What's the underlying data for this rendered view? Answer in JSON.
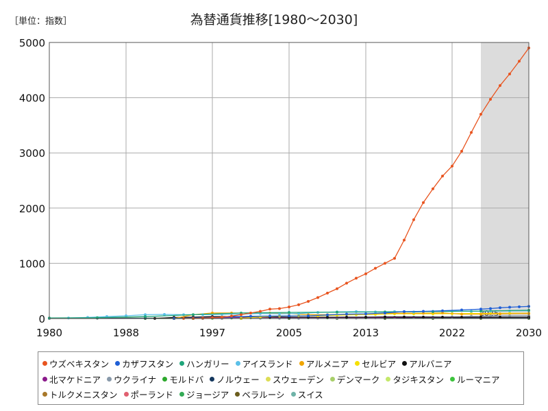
{
  "unit_label": "［単位：指数］",
  "chart_data": {
    "type": "line",
    "title": "為替通貨推移[1980～2030]",
    "xlabel": "",
    "ylabel": "",
    "xlim": [
      1980,
      2030
    ],
    "ylim": [
      0,
      5000
    ],
    "x_ticks": [
      1980,
      1988,
      1997,
      2005,
      2013,
      2022,
      2030
    ],
    "y_ticks": [
      0,
      1000,
      2000,
      3000,
      4000,
      5000
    ],
    "forecast_start": 2025,
    "forecast_label": "2025",
    "grid": true,
    "legend_position": "bottom",
    "series": [
      {
        "name": "ウズベキスタン",
        "color": "#e8541f",
        "points": [
          [
            1994,
            1
          ],
          [
            1995,
            3
          ],
          [
            1996,
            8
          ],
          [
            1997,
            15
          ],
          [
            1998,
            25
          ],
          [
            1999,
            45
          ],
          [
            2000,
            70
          ],
          [
            2001,
            100
          ],
          [
            2002,
            130
          ],
          [
            2003,
            170
          ],
          [
            2004,
            180
          ],
          [
            2005,
            210
          ],
          [
            2006,
            250
          ],
          [
            2007,
            310
          ],
          [
            2008,
            380
          ],
          [
            2009,
            460
          ],
          [
            2010,
            540
          ],
          [
            2011,
            640
          ],
          [
            2012,
            730
          ],
          [
            2013,
            810
          ],
          [
            2014,
            910
          ],
          [
            2015,
            1000
          ],
          [
            2016,
            1090
          ],
          [
            2017,
            1420
          ],
          [
            2018,
            1790
          ],
          [
            2019,
            2100
          ],
          [
            2020,
            2350
          ],
          [
            2021,
            2580
          ],
          [
            2022,
            2760
          ],
          [
            2023,
            3030
          ],
          [
            2024,
            3370
          ],
          [
            2025,
            3700
          ],
          [
            2026,
            3970
          ],
          [
            2027,
            4220
          ],
          [
            2028,
            4430
          ],
          [
            2029,
            4660
          ],
          [
            2030,
            4900
          ]
        ]
      },
      {
        "name": "カザフスタン",
        "color": "#1f5fd6",
        "points": [
          [
            1993,
            1
          ],
          [
            1995,
            10
          ],
          [
            1997,
            20
          ],
          [
            1999,
            30
          ],
          [
            2001,
            40
          ],
          [
            2003,
            45
          ],
          [
            2005,
            48
          ],
          [
            2007,
            50
          ],
          [
            2009,
            65
          ],
          [
            2011,
            80
          ],
          [
            2013,
            85
          ],
          [
            2015,
            100
          ],
          [
            2017,
            125
          ],
          [
            2019,
            130
          ],
          [
            2021,
            140
          ],
          [
            2023,
            155
          ],
          [
            2025,
            170
          ],
          [
            2026,
            180
          ],
          [
            2027,
            195
          ],
          [
            2028,
            205
          ],
          [
            2029,
            212
          ],
          [
            2030,
            220
          ]
        ]
      },
      {
        "name": "ハンガリー",
        "color": "#1fa57a",
        "points": [
          [
            1980,
            10
          ],
          [
            1985,
            15
          ],
          [
            1990,
            35
          ],
          [
            1995,
            70
          ],
          [
            2000,
            100
          ],
          [
            2005,
            110
          ],
          [
            2010,
            115
          ],
          [
            2015,
            120
          ],
          [
            2020,
            125
          ],
          [
            2025,
            135
          ],
          [
            2030,
            150
          ]
        ]
      },
      {
        "name": "アイスランド",
        "color": "#5bc0e8",
        "points": [
          [
            1980,
            5
          ],
          [
            1982,
            10
          ],
          [
            1984,
            20
          ],
          [
            1986,
            35
          ],
          [
            1988,
            50
          ],
          [
            1990,
            70
          ],
          [
            1992,
            75
          ],
          [
            1994,
            70
          ],
          [
            1996,
            70
          ],
          [
            1998,
            75
          ],
          [
            2000,
            80
          ],
          [
            2002,
            90
          ],
          [
            2004,
            85
          ],
          [
            2006,
            90
          ],
          [
            2008,
            110
          ],
          [
            2010,
            120
          ],
          [
            2012,
            125
          ],
          [
            2014,
            120
          ],
          [
            2016,
            125
          ],
          [
            2018,
            120
          ],
          [
            2020,
            130
          ],
          [
            2022,
            135
          ],
          [
            2024,
            130
          ],
          [
            2026,
            135
          ],
          [
            2028,
            138
          ],
          [
            2030,
            140
          ]
        ]
      },
      {
        "name": "アルメニア",
        "color": "#f0a500",
        "points": [
          [
            1993,
            1
          ],
          [
            1995,
            70
          ],
          [
            1997,
            100
          ],
          [
            1999,
            100
          ],
          [
            2001,
            100
          ],
          [
            2003,
            100
          ],
          [
            2005,
            90
          ],
          [
            2007,
            70
          ],
          [
            2009,
            70
          ],
          [
            2011,
            75
          ],
          [
            2013,
            80
          ],
          [
            2015,
            95
          ],
          [
            2017,
            95
          ],
          [
            2019,
            95
          ],
          [
            2021,
            100
          ],
          [
            2023,
            80
          ],
          [
            2025,
            80
          ],
          [
            2027,
            85
          ],
          [
            2030,
            90
          ]
        ]
      },
      {
        "name": "セルビア",
        "color": "#f5e000",
        "points": [
          [
            2000,
            5
          ],
          [
            2002,
            30
          ],
          [
            2004,
            45
          ],
          [
            2006,
            50
          ],
          [
            2008,
            50
          ],
          [
            2010,
            60
          ],
          [
            2012,
            70
          ],
          [
            2014,
            75
          ],
          [
            2016,
            85
          ],
          [
            2018,
            85
          ],
          [
            2020,
            85
          ],
          [
            2022,
            88
          ],
          [
            2024,
            90
          ],
          [
            2026,
            92
          ],
          [
            2028,
            94
          ],
          [
            2030,
            95
          ]
        ]
      },
      {
        "name": "アルバニア",
        "color": "#111111",
        "points": [
          [
            1991,
            1
          ],
          [
            1993,
            20
          ],
          [
            1995,
            25
          ],
          [
            1997,
            35
          ],
          [
            1999,
            35
          ],
          [
            2001,
            35
          ],
          [
            2003,
            30
          ],
          [
            2005,
            25
          ],
          [
            2007,
            23
          ],
          [
            2009,
            23
          ],
          [
            2011,
            25
          ],
          [
            2013,
            25
          ],
          [
            2015,
            30
          ],
          [
            2017,
            28
          ],
          [
            2019,
            27
          ],
          [
            2021,
            25
          ],
          [
            2023,
            23
          ],
          [
            2025,
            23
          ],
          [
            2027,
            23
          ],
          [
            2030,
            24
          ]
        ]
      },
      {
        "name": "北マケドニア",
        "color": "#8b1a8b",
        "points": [
          [
            1993,
            1
          ],
          [
            1995,
            10
          ],
          [
            1997,
            15
          ],
          [
            1999,
            20
          ],
          [
            2001,
            22
          ],
          [
            2003,
            20
          ],
          [
            2005,
            18
          ],
          [
            2007,
            18
          ],
          [
            2009,
            18
          ],
          [
            2011,
            18
          ],
          [
            2013,
            18
          ],
          [
            2015,
            20
          ],
          [
            2017,
            20
          ],
          [
            2019,
            20
          ],
          [
            2021,
            20
          ],
          [
            2023,
            21
          ],
          [
            2025,
            21
          ],
          [
            2030,
            22
          ]
        ]
      },
      {
        "name": "ウクライナ",
        "color": "#8899aa",
        "points": [
          [
            1996,
            1
          ],
          [
            1998,
            2
          ],
          [
            2000,
            5
          ],
          [
            2002,
            5
          ],
          [
            2004,
            5
          ],
          [
            2006,
            5
          ],
          [
            2008,
            6
          ],
          [
            2010,
            8
          ],
          [
            2012,
            8
          ],
          [
            2014,
            12
          ],
          [
            2016,
            25
          ],
          [
            2018,
            27
          ],
          [
            2020,
            27
          ],
          [
            2022,
            30
          ],
          [
            2024,
            40
          ],
          [
            2026,
            45
          ],
          [
            2028,
            48
          ],
          [
            2030,
            50
          ]
        ]
      },
      {
        "name": "モルドバ",
        "color": "#2ca82c",
        "points": [
          [
            1993,
            1
          ],
          [
            1995,
            5
          ],
          [
            1997,
            5
          ],
          [
            1999,
            10
          ],
          [
            2001,
            13
          ],
          [
            2003,
            13
          ],
          [
            2005,
            12
          ],
          [
            2007,
            12
          ],
          [
            2009,
            11
          ],
          [
            2011,
            12
          ],
          [
            2013,
            12
          ],
          [
            2015,
            16
          ],
          [
            2017,
            18
          ],
          [
            2019,
            17
          ],
          [
            2021,
            17
          ],
          [
            2023,
            18
          ],
          [
            2025,
            18
          ],
          [
            2030,
            19
          ]
        ]
      },
      {
        "name": "ノルウェー",
        "color": "#15385e",
        "points": [
          [
            1980,
            5
          ],
          [
            1985,
            8
          ],
          [
            1990,
            6
          ],
          [
            1995,
            6
          ],
          [
            2000,
            9
          ],
          [
            2005,
            6
          ],
          [
            2010,
            6
          ],
          [
            2015,
            8
          ],
          [
            2020,
            9
          ],
          [
            2025,
            10
          ],
          [
            2030,
            10
          ]
        ]
      },
      {
        "name": "スウェーデン",
        "color": "#dddd55",
        "points": [
          [
            1980,
            4
          ],
          [
            1985,
            8
          ],
          [
            1990,
            6
          ],
          [
            1995,
            7
          ],
          [
            2000,
            9
          ],
          [
            2005,
            7
          ],
          [
            2010,
            7
          ],
          [
            2015,
            8
          ],
          [
            2020,
            9
          ],
          [
            2025,
            10
          ],
          [
            2030,
            10
          ]
        ]
      },
      {
        "name": "デンマーク",
        "color": "#a8cf6a",
        "points": [
          [
            1980,
            6
          ],
          [
            1985,
            10
          ],
          [
            1990,
            6
          ],
          [
            1995,
            6
          ],
          [
            2000,
            8
          ],
          [
            2005,
            6
          ],
          [
            2010,
            5
          ],
          [
            2015,
            6
          ],
          [
            2020,
            6
          ],
          [
            2025,
            7
          ],
          [
            2030,
            7
          ]
        ]
      },
      {
        "name": "タジキスタン",
        "color": "#c4e86a",
        "points": [
          [
            2000,
            1
          ],
          [
            2005,
            3
          ],
          [
            2010,
            4
          ],
          [
            2015,
            6
          ],
          [
            2020,
            10
          ],
          [
            2025,
            11
          ],
          [
            2030,
            12
          ]
        ]
      },
      {
        "name": "ルーマニア",
        "color": "#3dc43d",
        "points": [
          [
            1990,
            0
          ],
          [
            1995,
            1
          ],
          [
            2000,
            2
          ],
          [
            2005,
            3
          ],
          [
            2010,
            3
          ],
          [
            2015,
            4
          ],
          [
            2020,
            4
          ],
          [
            2025,
            4
          ],
          [
            2030,
            5
          ]
        ]
      },
      {
        "name": "トルクメニスタン",
        "color": "#a8782a",
        "points": [
          [
            1993,
            0
          ],
          [
            1996,
            1
          ],
          [
            2000,
            1
          ],
          [
            2005,
            1
          ],
          [
            2010,
            3
          ],
          [
            2015,
            3
          ],
          [
            2020,
            3
          ],
          [
            2025,
            3
          ],
          [
            2030,
            4
          ]
        ]
      },
      {
        "name": "ポーランド",
        "color": "#e06070",
        "points": [
          [
            1980,
            0
          ],
          [
            1990,
            1
          ],
          [
            1995,
            2
          ],
          [
            2000,
            4
          ],
          [
            2005,
            3
          ],
          [
            2010,
            3
          ],
          [
            2015,
            4
          ],
          [
            2020,
            4
          ],
          [
            2025,
            4
          ],
          [
            2030,
            4
          ]
        ]
      },
      {
        "name": "ジョージア",
        "color": "#33aa55",
        "points": [
          [
            1995,
            1
          ],
          [
            2000,
            2
          ],
          [
            2005,
            2
          ],
          [
            2010,
            2
          ],
          [
            2015,
            2
          ],
          [
            2020,
            3
          ],
          [
            2025,
            3
          ],
          [
            2030,
            3
          ]
        ]
      },
      {
        "name": "ベラルーシ",
        "color": "#6b5d1e",
        "points": [
          [
            1995,
            0
          ],
          [
            2000,
            1
          ],
          [
            2005,
            2
          ],
          [
            2010,
            3
          ],
          [
            2015,
            2
          ],
          [
            2020,
            3
          ],
          [
            2025,
            3
          ],
          [
            2030,
            3
          ]
        ]
      },
      {
        "name": "スイス",
        "color": "#6fb3a8",
        "points": [
          [
            1980,
            2
          ],
          [
            1990,
            1
          ],
          [
            2000,
            1
          ],
          [
            2010,
            1
          ],
          [
            2020,
            1
          ],
          [
            2030,
            1
          ]
        ]
      }
    ]
  }
}
